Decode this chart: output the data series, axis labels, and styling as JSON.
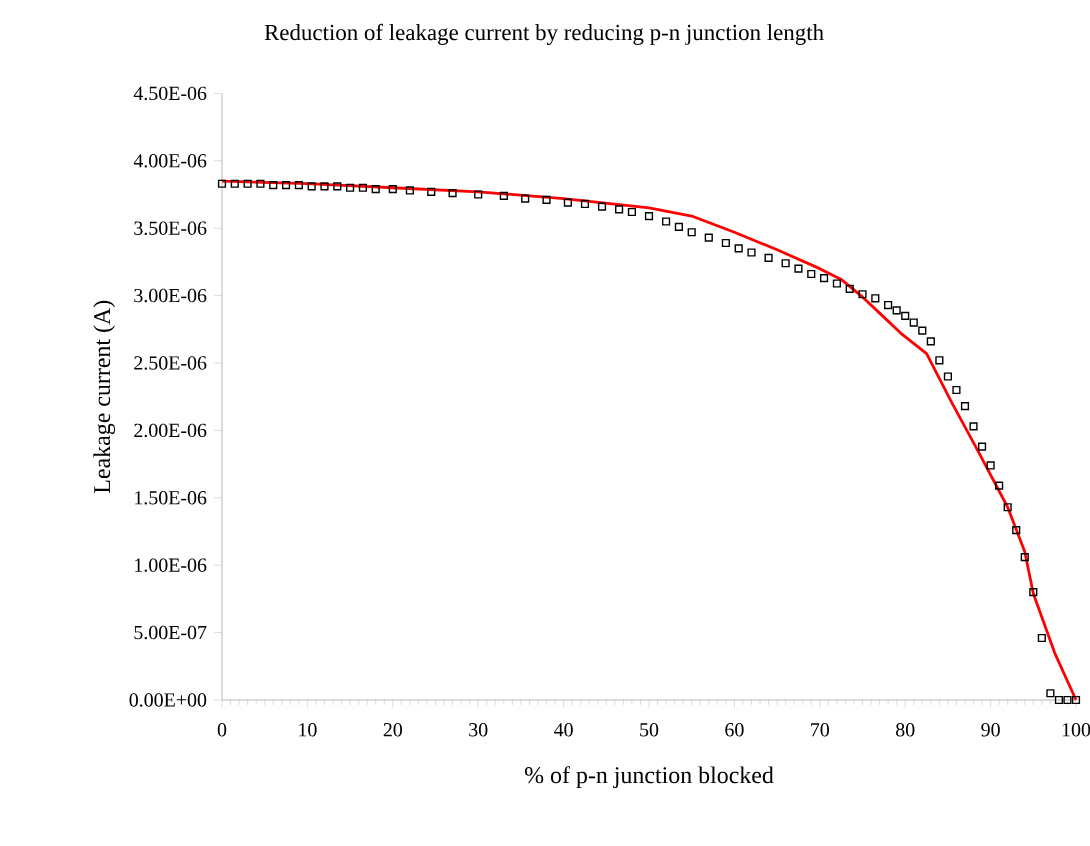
{
  "chart_data": {
    "type": "scatter",
    "title": "Reduction of leakage current by reducing p-n junction length",
    "xlabel": "% of p-n junction blocked",
    "ylabel": "Leakage current (A)",
    "xlim": [
      0,
      100
    ],
    "xticks": [
      0,
      10,
      20,
      30,
      40,
      50,
      60,
      70,
      80,
      90,
      100
    ],
    "ylim": [
      0,
      4.5e-06
    ],
    "yticks": [
      {
        "value": 0,
        "label": "0.00E+00"
      },
      {
        "value": 5e-07,
        "label": "5.00E-07"
      },
      {
        "value": 1e-06,
        "label": "1.00E-06"
      },
      {
        "value": 1.5e-06,
        "label": "1.50E-06"
      },
      {
        "value": 2e-06,
        "label": "2.00E-06"
      },
      {
        "value": 2.5e-06,
        "label": "2.50E-06"
      },
      {
        "value": 3e-06,
        "label": "3.00E-06"
      },
      {
        "value": 3.5e-06,
        "label": "3.50E-06"
      },
      {
        "value": 4e-06,
        "label": "4.00E-06"
      },
      {
        "value": 4.5e-06,
        "label": "4.50E-06"
      }
    ],
    "series": [
      {
        "color": "#000000",
        "marker": "square",
        "x": [
          0,
          1.5,
          3,
          4.5,
          6,
          7.5,
          9,
          10.5,
          12,
          13.5,
          15,
          16.5,
          18,
          20,
          22,
          24.5,
          27,
          30,
          33,
          35.5,
          38,
          40.5,
          42.5,
          44.5,
          46.5,
          48,
          50,
          52,
          53.5,
          55,
          57,
          59,
          60.5,
          62,
          64,
          66,
          67.5,
          69,
          70.5,
          72,
          73.5,
          75,
          76.5,
          78,
          79,
          80,
          81,
          82,
          83,
          84,
          85,
          86,
          87,
          88,
          89,
          90,
          91,
          92,
          93,
          94,
          95,
          96,
          97,
          98,
          99,
          100
        ],
        "values": [
          3.83e-06,
          3.83e-06,
          3.83e-06,
          3.83e-06,
          3.82e-06,
          3.82e-06,
          3.82e-06,
          3.81e-06,
          3.81e-06,
          3.81e-06,
          3.8e-06,
          3.8e-06,
          3.79e-06,
          3.79e-06,
          3.78e-06,
          3.77e-06,
          3.76e-06,
          3.75e-06,
          3.74e-06,
          3.72e-06,
          3.71e-06,
          3.69e-06,
          3.68e-06,
          3.66e-06,
          3.64e-06,
          3.62e-06,
          3.59e-06,
          3.55e-06,
          3.51e-06,
          3.47e-06,
          3.43e-06,
          3.39e-06,
          3.35e-06,
          3.32e-06,
          3.28e-06,
          3.24e-06,
          3.2e-06,
          3.16e-06,
          3.13e-06,
          3.09e-06,
          3.05e-06,
          3.01e-06,
          2.98e-06,
          2.93e-06,
          2.89e-06,
          2.85e-06,
          2.8e-06,
          2.74e-06,
          2.66e-06,
          2.52e-06,
          2.4e-06,
          2.3e-06,
          2.18e-06,
          2.03e-06,
          1.88e-06,
          1.74e-06,
          1.59e-06,
          1.43e-06,
          1.26e-06,
          1.06e-06,
          8e-07,
          4.6e-07,
          5e-08,
          0,
          0,
          0
        ]
      },
      {
        "type": "line",
        "color": "#ff0000",
        "x": [
          0,
          10,
          20,
          30,
          40,
          50,
          55,
          60,
          65,
          70,
          72.5,
          75,
          77,
          79.5,
          82.5,
          85.5,
          88.5,
          92,
          94,
          95,
          97.5,
          100
        ],
        "values": [
          3.85e-06,
          3.83e-06,
          3.8e-06,
          3.77e-06,
          3.72e-06,
          3.65e-06,
          3.59e-06,
          3.47e-06,
          3.34e-06,
          3.2e-06,
          3.12e-06,
          2.99e-06,
          2.87e-06,
          2.72e-06,
          2.57e-06,
          2.2e-06,
          1.85e-06,
          1.43e-06,
          1.1e-06,
          7.9e-07,
          3.5e-07,
          0
        ]
      }
    ]
  }
}
